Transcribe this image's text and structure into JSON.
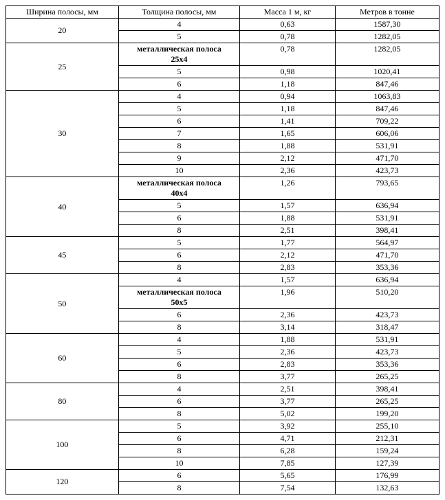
{
  "headers": [
    "Ширина полосы, мм",
    "Толщина полосы, мм",
    "Масса 1 м, кг",
    "Метров в тонне"
  ],
  "groups": [
    {
      "width": "20",
      "rows": [
        {
          "thick": "4",
          "mass": "0,63",
          "mpt": "1587,30"
        },
        {
          "thick": "5",
          "mass": "0,78",
          "mpt": "1282,05"
        }
      ]
    },
    {
      "width": "25",
      "rows": [
        {
          "thick": "металлическая полоса 25x4",
          "bold": true,
          "multiline": true,
          "mass": "0,78",
          "mpt": "1282,05"
        },
        {
          "thick": "5",
          "mass": "0,98",
          "mpt": "1020,41"
        },
        {
          "thick": "6",
          "mass": "1,18",
          "mpt": "847,46"
        }
      ]
    },
    {
      "width": "30",
      "rows": [
        {
          "thick": "4",
          "mass": "0,94",
          "mpt": "1063,83"
        },
        {
          "thick": "5",
          "mass": "1,18",
          "mpt": "847,46"
        },
        {
          "thick": "6",
          "mass": "1,41",
          "mpt": "709,22"
        },
        {
          "thick": "7",
          "mass": "1,65",
          "mpt": "606,06"
        },
        {
          "thick": "8",
          "mass": "1,88",
          "mpt": "531,91"
        },
        {
          "thick": "9",
          "mass": "2,12",
          "mpt": "471,70"
        },
        {
          "thick": "10",
          "mass": "2,36",
          "mpt": "423,73"
        }
      ]
    },
    {
      "width": "40",
      "rows": [
        {
          "thick": "металлическая полоса 40x4",
          "bold": true,
          "multiline": true,
          "mass": "1,26",
          "mpt": "793,65"
        },
        {
          "thick": "5",
          "mass": "1,57",
          "mpt": "636,94"
        },
        {
          "thick": "6",
          "mass": "1,88",
          "mpt": "531,91"
        },
        {
          "thick": "8",
          "mass": "2,51",
          "mpt": "398,41"
        }
      ]
    },
    {
      "width": "45",
      "rows": [
        {
          "thick": "5",
          "mass": "1,77",
          "mpt": "564,97"
        },
        {
          "thick": "6",
          "mass": "2,12",
          "mpt": "471,70"
        },
        {
          "thick": "8",
          "mass": "2,83",
          "mpt": "353,36"
        }
      ]
    },
    {
      "width": "50",
      "rows": [
        {
          "thick": "4",
          "mass": "1,57",
          "mpt": "636,94"
        },
        {
          "thick": "металлическая полоса 50x5",
          "bold": true,
          "multiline": true,
          "mass": "1,96",
          "mpt": "510,20"
        },
        {
          "thick": "6",
          "mass": "2,36",
          "mpt": "423,73"
        },
        {
          "thick": "8",
          "mass": "3,14",
          "mpt": "318,47"
        }
      ]
    },
    {
      "width": "60",
      "rows": [
        {
          "thick": "4",
          "mass": "1,88",
          "mpt": "531,91"
        },
        {
          "thick": "5",
          "mass": "2,36",
          "mpt": "423,73"
        },
        {
          "thick": "6",
          "mass": "2,83",
          "mpt": "353,36"
        },
        {
          "thick": "8",
          "mass": "3,77",
          "mpt": "265,25"
        }
      ]
    },
    {
      "width": "80",
      "rows": [
        {
          "thick": "4",
          "mass": "2,51",
          "mpt": "398,41"
        },
        {
          "thick": "6",
          "mass": "3,77",
          "mpt": "265,25"
        },
        {
          "thick": "8",
          "mass": "5,02",
          "mpt": "199,20"
        }
      ]
    },
    {
      "width": "100",
      "rows": [
        {
          "thick": "5",
          "mass": "3,92",
          "mpt": "255,10"
        },
        {
          "thick": "6",
          "mass": "4,71",
          "mpt": "212,31"
        },
        {
          "thick": "8",
          "mass": "6,28",
          "mpt": "159,24"
        },
        {
          "thick": "10",
          "mass": "7,85",
          "mpt": "127,39"
        }
      ]
    },
    {
      "width": "120",
      "rows": [
        {
          "thick": "6",
          "mass": "5,65",
          "mpt": "176,99"
        },
        {
          "thick": "8",
          "mass": "7,54",
          "mpt": "132,63"
        }
      ]
    }
  ]
}
